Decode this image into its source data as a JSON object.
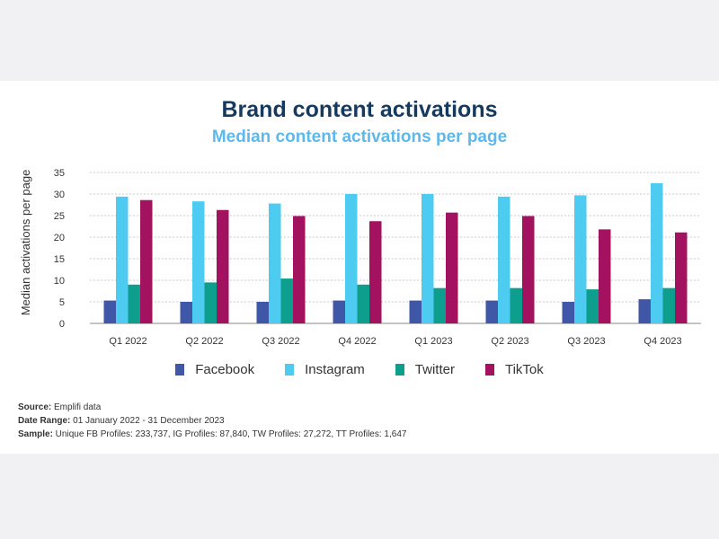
{
  "title": "Brand content activations",
  "subtitle": "Median content activations per page",
  "colors": {
    "Facebook": "#3f57a6",
    "Instagram": "#4ecbf0",
    "Twitter": "#0d9e8e",
    "TikTok": "#a2125f"
  },
  "chart_data": {
    "type": "bar",
    "title": "Brand content activations",
    "subtitle": "Median content activations per page",
    "xlabel": "",
    "ylabel": "Median activations per page",
    "ylim": [
      0,
      35
    ],
    "yticks": [
      0,
      5,
      10,
      15,
      20,
      25,
      30,
      35
    ],
    "grid": true,
    "legend": "bottom",
    "categories": [
      "Q1 2022",
      "Q2 2022",
      "Q3 2022",
      "Q4 2022",
      "Q1 2023",
      "Q2 2023",
      "Q3 2023",
      "Q4 2023"
    ],
    "series": [
      {
        "name": "Facebook",
        "values": [
          5.3,
          5.0,
          5.0,
          5.3,
          5.3,
          5.3,
          5.0,
          5.6
        ]
      },
      {
        "name": "Instagram",
        "values": [
          29.4,
          28.3,
          27.8,
          30.0,
          30.0,
          29.4,
          29.7,
          32.5
        ]
      },
      {
        "name": "Twitter",
        "values": [
          9.0,
          9.5,
          10.4,
          9.0,
          8.2,
          8.2,
          7.9,
          8.2
        ]
      },
      {
        "name": "TikTok",
        "values": [
          28.6,
          26.3,
          24.9,
          23.7,
          25.7,
          24.9,
          21.8,
          21.1
        ]
      }
    ]
  },
  "footer": {
    "source_label": "Source:",
    "source_value": " Emplifi data",
    "range_label": "Date Range:",
    "range_value": " 01 January 2022 - 31 December 2023",
    "sample_label": "Sample:",
    "sample_value": " Unique FB Profiles: 233,737, IG Profiles: 87,840, TW Profiles: 27,272, TT Profiles: 1,647"
  }
}
